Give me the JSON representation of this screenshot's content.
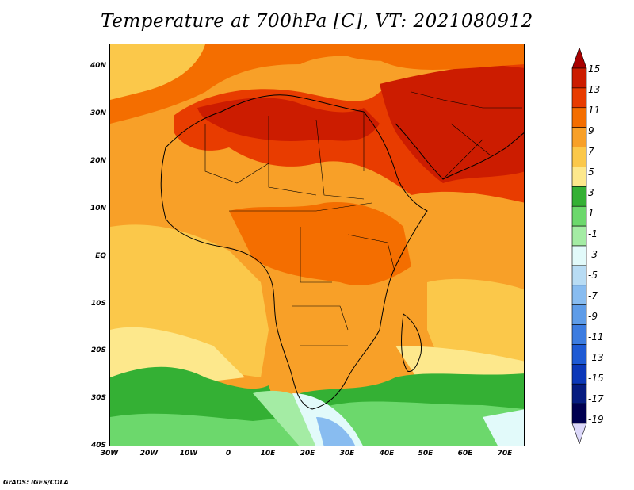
{
  "title": "Temperature at 700hPa [C], VT: 2021080912",
  "credit": "GrADS: IGES/COLA",
  "map": {
    "region": "Africa",
    "lon_range": [
      -30,
      75
    ],
    "lat_range": [
      -40,
      45
    ],
    "lat_ticks": [
      "40N",
      "30N",
      "20N",
      "10N",
      "EQ",
      "10S",
      "20S",
      "30S",
      "40S"
    ],
    "lon_ticks": [
      "30W",
      "20W",
      "10W",
      "0",
      "10E",
      "20E",
      "30E",
      "40E",
      "50E",
      "60E",
      "70E"
    ]
  },
  "colorbar": {
    "labels": [
      "15",
      "13",
      "11",
      "9",
      "7",
      "5",
      "3",
      "1",
      "-1",
      "-3",
      "-5",
      "-7",
      "-9",
      "-11",
      "-13",
      "-15",
      "-17",
      "-19"
    ],
    "colors": [
      "#a80000",
      "#cc1c00",
      "#e83c00",
      "#f46e00",
      "#f8a028",
      "#fbc84a",
      "#fde88c",
      "#34b034",
      "#6cd86c",
      "#a4eca4",
      "#e2fafa",
      "#b8dcf4",
      "#88bcf0",
      "#5e9ce8",
      "#3c7ce0",
      "#1e5ad4",
      "#0c38b8",
      "#061c80",
      "#000050",
      "#dcd8fa"
    ]
  }
}
